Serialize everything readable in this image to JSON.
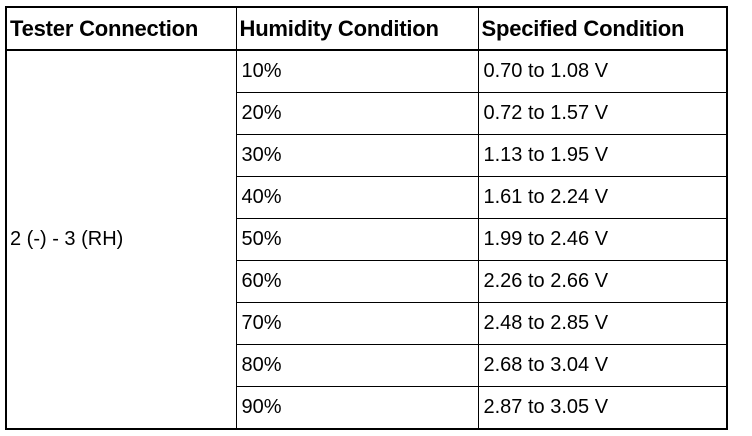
{
  "table": {
    "headers": {
      "tester_connection": "Tester Connection",
      "humidity_condition": "Humidity Condition",
      "specified_condition": "Specified Condition"
    },
    "tester_connection_value": "2 (-) - 3 (RH)",
    "rows": [
      {
        "humidity": "10%",
        "spec": "0.70 to 1.08 V"
      },
      {
        "humidity": "20%",
        "spec": "0.72 to 1.57 V"
      },
      {
        "humidity": "30%",
        "spec": "1.13 to 1.95 V"
      },
      {
        "humidity": "40%",
        "spec": "1.61 to 2.24 V"
      },
      {
        "humidity": "50%",
        "spec": "1.99 to 2.46 V"
      },
      {
        "humidity": "60%",
        "spec": "2.26 to 2.66 V"
      },
      {
        "humidity": "70%",
        "spec": "2.48 to 2.85 V"
      },
      {
        "humidity": "80%",
        "spec": "2.68 to 3.04 V"
      },
      {
        "humidity": "90%",
        "spec": "2.87 to 3.05 V"
      }
    ]
  }
}
